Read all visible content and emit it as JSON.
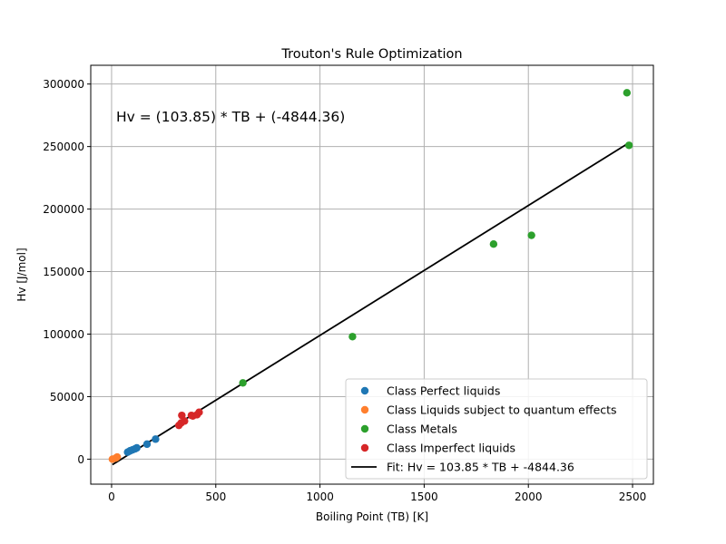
{
  "chart_data": {
    "type": "scatter",
    "title": "Trouton's Rule Optimization",
    "xlabel": "Boiling Point (TB) [K]",
    "ylabel": "Hv [J/mol]",
    "xlim": [
      -100,
      2600
    ],
    "ylim": [
      -20000,
      315000
    ],
    "xticks": [
      0,
      500,
      1000,
      1500,
      2000,
      2500
    ],
    "yticks": [
      0,
      50000,
      100000,
      150000,
      200000,
      250000,
      300000
    ],
    "grid": true,
    "legend_position": "lower-right",
    "annotation": "Hv = (103.85) * TB + (-4844.36)",
    "series": [
      {
        "name": "Class Perfect liquids",
        "color": "#1f77b4",
        "points": [
          [
            77,
            5600
          ],
          [
            87,
            6500
          ],
          [
            90,
            6800
          ],
          [
            100,
            7400
          ],
          [
            112,
            8200
          ],
          [
            121,
            9000
          ],
          [
            170,
            12000
          ],
          [
            211,
            16000
          ]
        ]
      },
      {
        "name": "Class Liquids subject to quantum effects",
        "color": "#ff7f2e",
        "points": [
          [
            4,
            0
          ],
          [
            20,
            900
          ],
          [
            27,
            1700
          ]
        ]
      },
      {
        "name": "Class Metals",
        "color": "#2ca02c",
        "points": [
          [
            630,
            61000
          ],
          [
            1156,
            98000
          ],
          [
            1833,
            172000
          ],
          [
            2015,
            179000
          ],
          [
            2473,
            293000
          ],
          [
            2483,
            251000
          ]
        ]
      },
      {
        "name": "Class Imperfect liquids",
        "color": "#d62728",
        "points": [
          [
            323,
            27000
          ],
          [
            334,
            29000
          ],
          [
            337,
            35000
          ],
          [
            350,
            30500
          ],
          [
            383,
            35000
          ],
          [
            390,
            34500
          ],
          [
            410,
            35500
          ],
          [
            420,
            37500
          ]
        ]
      }
    ],
    "fit": {
      "name": "Fit: Hv = 103.85 * TB + -4844.36",
      "color": "#000000",
      "slope": 103.85,
      "intercept": -4844.36,
      "x_range": [
        4,
        2483
      ]
    }
  }
}
